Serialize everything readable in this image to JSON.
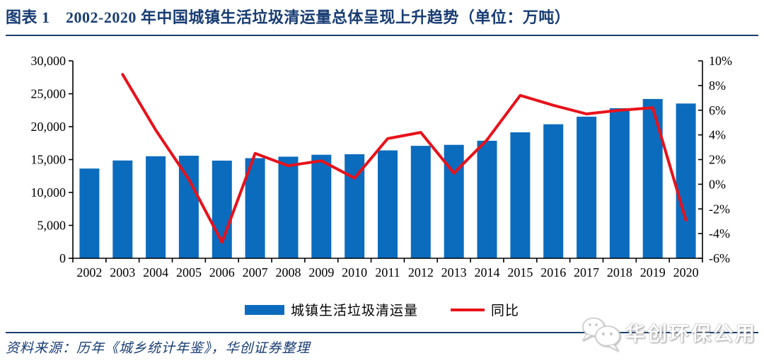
{
  "header": {
    "title": "图表 1　2002-2020 年中国城镇生活垃圾清运量总体呈现上升趋势（单位：万吨）"
  },
  "chart_data": {
    "type": "bar+line combo",
    "title": "2002-2020 年中国城镇生活垃圾清运量总体呈现上升趋势",
    "unit_note": "万吨",
    "categories": [
      "2002",
      "2003",
      "2004",
      "2005",
      "2006",
      "2007",
      "2008",
      "2009",
      "2010",
      "2011",
      "2012",
      "2013",
      "2014",
      "2015",
      "2016",
      "2017",
      "2018",
      "2019",
      "2020"
    ],
    "series": [
      {
        "name": "城镇生活垃圾清运量",
        "type": "bar",
        "axis": "left",
        "color": "#0b6cbe",
        "values": [
          13638,
          14857,
          15509,
          15577,
          14841,
          15215,
          15438,
          15734,
          15805,
          16395,
          17081,
          17239,
          17860,
          19142,
          20362,
          21521,
          22802,
          24206,
          23512
        ]
      },
      {
        "name": "同比",
        "type": "line",
        "axis": "right",
        "color": "#e8111a",
        "values": [
          null,
          8.9,
          4.4,
          0.4,
          -4.7,
          2.5,
          1.5,
          1.9,
          0.5,
          3.7,
          4.2,
          0.9,
          3.6,
          7.2,
          6.4,
          5.7,
          6.0,
          6.2,
          -2.9
        ]
      }
    ],
    "left_axis": {
      "min": 0,
      "max": 30000,
      "step": 5000,
      "tick_labels": [
        "0",
        "5,000",
        "10,000",
        "15,000",
        "20,000",
        "25,000",
        "30,000"
      ]
    },
    "right_axis": {
      "min": -6,
      "max": 10,
      "step": 2,
      "tick_labels": [
        "-6%",
        "-4%",
        "-2%",
        "0%",
        "2%",
        "4%",
        "6%",
        "8%",
        "10%"
      ]
    },
    "grid": false,
    "legend_position": "bottom"
  },
  "legend": {
    "bar_label": "城镇生活垃圾清运量",
    "line_label": "同比"
  },
  "footer": {
    "source": "资料来源：历年《城乡统计年鉴》，华创证券整理"
  },
  "watermark": {
    "text": "华创环保公用",
    "icon": "wechat-icon"
  },
  "colors": {
    "navy": "#173c73",
    "bar_blue": "#0b6cbe",
    "line_red": "#e8111a"
  }
}
